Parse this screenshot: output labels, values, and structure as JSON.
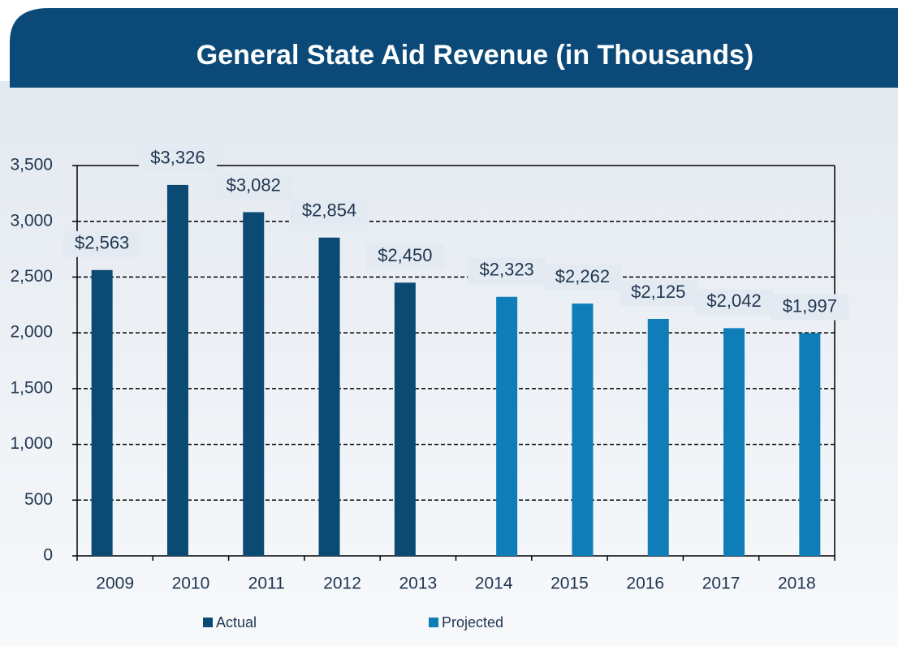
{
  "chart_data": {
    "type": "bar",
    "title": "General State Aid Revenue (in Thousands)",
    "categories": [
      "2009",
      "2010",
      "2011",
      "2012",
      "2013",
      "2014",
      "2015",
      "2016",
      "2017",
      "2018"
    ],
    "series": [
      {
        "name": "Actual",
        "color": "#0b4a73",
        "values": [
          2563,
          3326,
          3082,
          2854,
          2450,
          null,
          null,
          null,
          null,
          null
        ],
        "value_labels": [
          "$2,563",
          "$3,326",
          "$3,082",
          "$2,854",
          "$2,450",
          null,
          null,
          null,
          null,
          null
        ]
      },
      {
        "name": "Projected",
        "color": "#0e7db8",
        "values": [
          null,
          null,
          null,
          null,
          null,
          2323,
          2262,
          2125,
          2042,
          1997
        ],
        "value_labels": [
          null,
          null,
          null,
          null,
          null,
          "$2,323",
          "$2,262",
          "$2,125",
          "$2,042",
          "$1,997"
        ]
      }
    ],
    "ylim": [
      0,
      3500
    ],
    "yticks": [
      0,
      500,
      {
        "value": 1000,
        "label": "1,000"
      },
      {
        "value": 1500,
        "label": "1,500"
      },
      {
        "value": 2000,
        "label": "2,000"
      },
      {
        "value": 2500,
        "label": "2,500"
      },
      {
        "value": 3000,
        "label": "3,000"
      },
      {
        "value": 3500,
        "label": "3,500"
      }
    ],
    "grid": true,
    "legend": "bottom"
  }
}
